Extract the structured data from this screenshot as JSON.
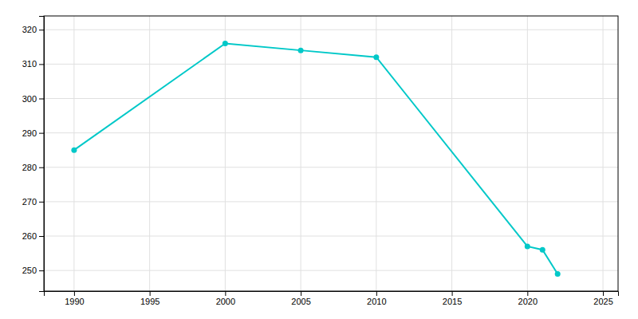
{
  "chart_data": {
    "type": "line",
    "x": [
      1990,
      2000,
      2005,
      2010,
      2020,
      2021,
      2022
    ],
    "values": [
      285,
      316,
      314,
      312,
      257,
      256,
      249
    ],
    "color": "#00C8C8",
    "marker": "circle",
    "xlim": [
      1988,
      2026
    ],
    "xticks": [
      1990,
      1995,
      2000,
      2005,
      2010,
      2015,
      2020,
      2025
    ],
    "ylim": [
      244,
      324
    ],
    "yticks": [
      250,
      260,
      270,
      280,
      290,
      300,
      310,
      320
    ],
    "grid": true
  }
}
